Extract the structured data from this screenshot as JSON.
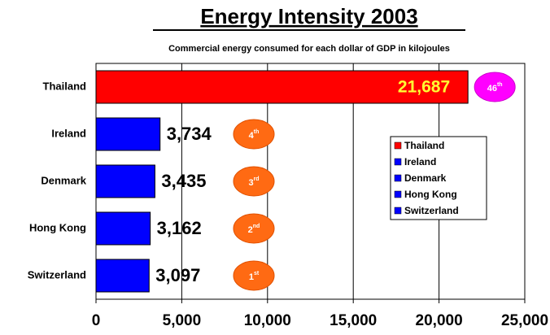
{
  "chart_data": {
    "type": "bar",
    "orientation": "horizontal",
    "title": "Energy Intensity 2003",
    "subtitle": "Commercial energy consumed for each dollar of GDP in kilojoules",
    "categories": [
      "Thailand",
      "Ireland",
      "Denmark",
      "Hong Kong",
      "Switzerland"
    ],
    "values": [
      21687,
      3734,
      3435,
      3162,
      3097
    ],
    "value_labels": [
      "21,687",
      "3,734",
      "3,435",
      "3,162",
      "3,097"
    ],
    "colors": [
      "#ff0000",
      "#0000ff",
      "#0000ff",
      "#0000ff",
      "#0000ff"
    ],
    "annotations": [
      {
        "text": "46",
        "suffix": "th",
        "color": "#ff00ff"
      },
      {
        "text": "4",
        "suffix": "th",
        "color": "#ff6a13"
      },
      {
        "text": "3",
        "suffix": "rd",
        "color": "#ff6a13"
      },
      {
        "text": "2",
        "suffix": "nd",
        "color": "#ff6a13"
      },
      {
        "text": "1",
        "suffix": "st",
        "color": "#ff6a13"
      }
    ],
    "xlim": [
      0,
      25000
    ],
    "xticks": [
      0,
      {
        "value": 5000,
        "label": "5,000"
      },
      {
        "value": 10000,
        "label": "10,000"
      },
      {
        "value": 15000,
        "label": "15,000"
      },
      {
        "value": 20000,
        "label": "20,000"
      },
      {
        "value": 25000,
        "label": "25,000"
      }
    ],
    "grid": true,
    "legend": "right"
  }
}
